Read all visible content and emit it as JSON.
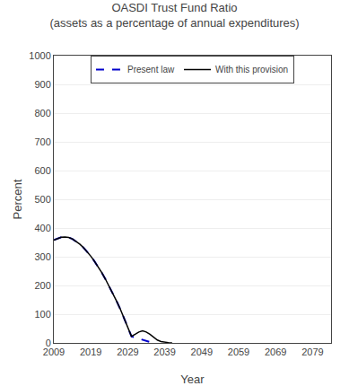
{
  "chart_data": {
    "type": "line",
    "title": "OASDI Trust Fund Ratio",
    "subtitle": "(assets as a percentage of annual expenditures)",
    "x_label": "Year",
    "y_label": "Percent",
    "xlim": [
      2009,
      2084
    ],
    "ylim": [
      0,
      1000
    ],
    "xticks": [
      2009,
      2019,
      2029,
      2039,
      2049,
      2059,
      2069,
      2079
    ],
    "yticks": [
      0,
      100,
      200,
      300,
      400,
      500,
      600,
      700,
      800,
      900,
      1000
    ],
    "grid": "y",
    "legend": "upper center",
    "series": [
      {
        "name": "Present law",
        "color": "#0000cc",
        "line_style": "dashed",
        "x": [
          2009,
          2010,
          2011,
          2012,
          2013,
          2014,
          2015,
          2016,
          2017,
          2018,
          2019,
          2020,
          2021,
          2022,
          2023,
          2024,
          2025,
          2026,
          2027,
          2028,
          2029,
          2030,
          2035.8
        ],
        "values": [
          358,
          363,
          368,
          369,
          367,
          362,
          354,
          344,
          332,
          318,
          302,
          284,
          265,
          244,
          221,
          197,
          172,
          145,
          117,
          87,
          56,
          23,
          0
        ]
      },
      {
        "name": "With this provision",
        "color": "#000000",
        "line_style": "solid",
        "x": [
          2009,
          2010,
          2011,
          2012,
          2013,
          2014,
          2015,
          2016,
          2017,
          2018,
          2019,
          2020,
          2021,
          2022,
          2023,
          2024,
          2025,
          2026,
          2027,
          2028,
          2029,
          2030,
          2031,
          2032,
          2033,
          2034,
          2035,
          2036,
          2037,
          2038,
          2039,
          2040,
          2041
        ],
        "values": [
          358,
          363,
          368,
          369,
          367,
          362,
          354,
          344,
          332,
          318,
          302,
          284,
          265,
          244,
          221,
          197,
          172,
          145,
          117,
          87,
          56,
          23,
          30,
          38,
          42,
          38,
          30,
          20,
          10,
          5,
          2,
          1,
          0
        ]
      }
    ]
  }
}
